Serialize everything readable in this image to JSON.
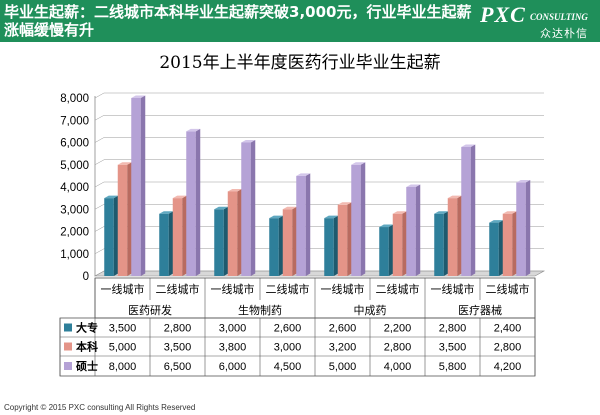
{
  "header": {
    "headline": "毕业生起薪：二线城市本科毕业生起薪突破3,000元，行业毕业生起薪涨幅缓慢有升",
    "logo_main": "PXC",
    "logo_sub": "CONSULTING",
    "logo_cn": "众达朴信"
  },
  "footer": {
    "copyright": "Copyright © 2015 PXC consulting All Rights Reserved"
  },
  "colors": {
    "header_bg": "#1f8f5a",
    "dazhuan": "#2e7f9a",
    "benke": "#e49488",
    "shuoshi": "#b5a2d6"
  },
  "chart_data": {
    "type": "bar",
    "title": "2015年上半年度医药行业毕业生起薪",
    "categories": [
      "一线城市",
      "二线城市",
      "一线城市",
      "二线城市",
      "一线城市",
      "二线城市",
      "一线城市",
      "二线城市"
    ],
    "groups": [
      {
        "label": "医药研发",
        "span": 2
      },
      {
        "label": "生物制药",
        "span": 2
      },
      {
        "label": "中成药",
        "span": 2
      },
      {
        "label": "医疗器械",
        "span": 2
      }
    ],
    "series": [
      {
        "name": "大专",
        "values": [
          3500,
          2800,
          3000,
          2600,
          2600,
          2200,
          2800,
          2400
        ],
        "display": [
          "3,500",
          "2,800",
          "3,000",
          "2,600",
          "2,600",
          "2,200",
          "2,800",
          "2,400"
        ]
      },
      {
        "name": "本科",
        "values": [
          5000,
          3500,
          3800,
          3000,
          3200,
          2800,
          3500,
          2800
        ],
        "display": [
          "5,000",
          "3,500",
          "3,800",
          "3,000",
          "3,200",
          "2,800",
          "3,500",
          "2,800"
        ]
      },
      {
        "name": "硕士",
        "values": [
          8000,
          6500,
          6000,
          4500,
          5000,
          4000,
          5800,
          4200
        ],
        "display": [
          "8,000",
          "6,500",
          "6,000",
          "4,500",
          "5,000",
          "4,000",
          "5,800",
          "4,200"
        ]
      }
    ],
    "yticks": [
      "0",
      "1,000",
      "2,000",
      "3,000",
      "4,000",
      "5,000",
      "6,000",
      "7,000",
      "8,000"
    ],
    "ylim": [
      0,
      8000
    ]
  }
}
